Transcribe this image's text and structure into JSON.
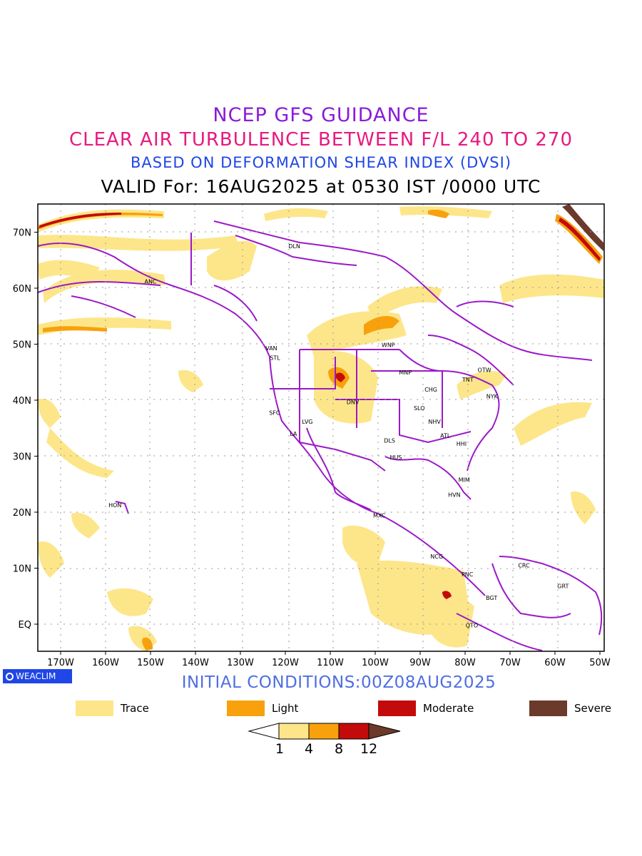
{
  "header": {
    "line1": "NCEP GFS GUIDANCE",
    "line2": "CLEAR AIR TURBULENCE BETWEEN F/L 240 TO 270",
    "line3": "BASED ON DEFORMATION SHEAR INDEX (DVSI)",
    "line4": "VALID For: 16AUG2025 at 0530 IST /0000 UTC"
  },
  "colors": {
    "line1": "#8a1ad8",
    "line2": "#e8197f",
    "line3": "#1f46e6",
    "line4": "#000000",
    "boundaries": "#9b19c8",
    "initial_conditions": "#4f6fe0",
    "trace": "#fde68a",
    "light": "#f8a10c",
    "moderate": "#c30b0b",
    "severe": "#6b3a2a",
    "badge": "#1f46e6"
  },
  "map": {
    "lon_labels": [
      "170W",
      "160W",
      "150W",
      "140W",
      "130W",
      "120W",
      "110W",
      "100W",
      "90W",
      "80W",
      "70W",
      "60W",
      "50W"
    ],
    "lat_labels": [
      "70N",
      "60N",
      "50N",
      "40N",
      "30N",
      "20N",
      "10N",
      "EQ"
    ],
    "cities": [
      {
        "label": "ANC",
        "lon": -150.0,
        "lat": 61.2
      },
      {
        "label": "VAN",
        "lon": -123.1,
        "lat": 49.3
      },
      {
        "label": "STL",
        "lon": -122.3,
        "lat": 47.6
      },
      {
        "label": "WNP",
        "lon": -97.1,
        "lat": 49.9
      },
      {
        "label": "MNP",
        "lon": -93.3,
        "lat": 45.0
      },
      {
        "label": "TNT",
        "lon": -79.4,
        "lat": 43.7
      },
      {
        "label": "OTW",
        "lon": -75.7,
        "lat": 45.4
      },
      {
        "label": "CHG",
        "lon": -87.6,
        "lat": 41.9
      },
      {
        "label": "NYK",
        "lon": -74.0,
        "lat": 40.7
      },
      {
        "label": "SFC",
        "lon": -122.4,
        "lat": 37.8
      },
      {
        "label": "DNV",
        "lon": -105.0,
        "lat": 39.7
      },
      {
        "label": "SLO",
        "lon": -90.2,
        "lat": 38.6
      },
      {
        "label": "LVG",
        "lon": -115.1,
        "lat": 36.2
      },
      {
        "label": "NHV",
        "lon": -86.8,
        "lat": 36.2
      },
      {
        "label": "LA",
        "lon": -118.2,
        "lat": 34.0
      },
      {
        "label": "DLS",
        "lon": -96.8,
        "lat": 32.8
      },
      {
        "label": "ATL",
        "lon": -84.4,
        "lat": 33.7
      },
      {
        "label": "HHI",
        "lon": -80.8,
        "lat": 32.2
      },
      {
        "label": "HUS",
        "lon": -95.4,
        "lat": 29.8
      },
      {
        "label": "MIM",
        "lon": -80.2,
        "lat": 25.8
      },
      {
        "label": "HVN",
        "lon": -82.4,
        "lat": 23.1
      },
      {
        "label": "HON",
        "lon": -157.9,
        "lat": 21.3
      },
      {
        "label": "MXC",
        "lon": -99.1,
        "lat": 19.4
      },
      {
        "label": "NCG",
        "lon": -86.3,
        "lat": 12.1
      },
      {
        "label": "CRC",
        "lon": -66.9,
        "lat": 10.5
      },
      {
        "label": "PNC",
        "lon": -79.5,
        "lat": 8.9
      },
      {
        "label": "GRT",
        "lon": -58.2,
        "lat": 6.8
      },
      {
        "label": "BGT",
        "lon": -74.1,
        "lat": 4.7
      },
      {
        "label": "QTO",
        "lon": -78.5,
        "lat": -0.2
      },
      {
        "label": "DLN",
        "lon": -118.0,
        "lat": 67.5
      }
    ]
  },
  "footer": {
    "badge": "WEACLIM",
    "initial_conditions": "INITIAL CONDITIONS:00Z08AUG2025"
  },
  "legend": {
    "items": [
      {
        "label": "Trace",
        "color": "#fde68a"
      },
      {
        "label": "Light",
        "color": "#f8a10c"
      },
      {
        "label": "Moderate",
        "color": "#c30b0b"
      },
      {
        "label": "Severe",
        "color": "#6b3a2a"
      }
    ],
    "colorbar_labels": [
      "1",
      "4",
      "8",
      "12"
    ]
  }
}
